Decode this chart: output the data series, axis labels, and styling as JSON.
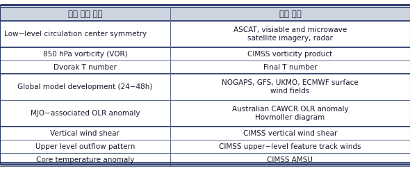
{
  "title_left": "태풍 발생 인자",
  "title_right": "사용 자료",
  "rows": [
    {
      "left": "Low−level circulation center symmetry",
      "right": "ASCAT, visiable and microwave\nsatellite imagery, radar",
      "left_align": "left",
      "tall": true
    },
    {
      "left": "850 hPa vorticity (VOR)",
      "right": "CIMSS vorticity product",
      "left_align": "center",
      "tall": false
    },
    {
      "left": "Dvorak T number",
      "right": "Final T number",
      "left_align": "center",
      "tall": false
    },
    {
      "left": "Global model development (24−48h)",
      "right": "NOGAPS, GFS, UKMO, ECMWF surface\nwind fields",
      "left_align": "center",
      "tall": true
    },
    {
      "left": "MJO−associated OLR anomaly",
      "right": "Australian CAWCR OLR anomaly\nHovmoller diagram",
      "left_align": "center",
      "tall": true
    },
    {
      "left": "Vertical wind shear",
      "right": "CIMSS vertical wind shear",
      "left_align": "center",
      "tall": false
    },
    {
      "left": "Upper level outflow pattern",
      "right": "CIMSS upper−level feature track winds",
      "left_align": "center",
      "tall": false
    },
    {
      "left": "Core temperature anomaly",
      "right": "CIMSS AMSU",
      "left_align": "center",
      "tall": false
    }
  ],
  "col_split": 0.415,
  "header_bg": "#ccd4e0",
  "text_color": "#1a1a2e",
  "border_color": "#2a3a6a",
  "thin_line_color": "#5a6a8a",
  "font_size": 7.5,
  "header_font_size": 8.5,
  "thick_lw": 2.2,
  "thin_lw": 0.7,
  "major_lw": 1.3
}
